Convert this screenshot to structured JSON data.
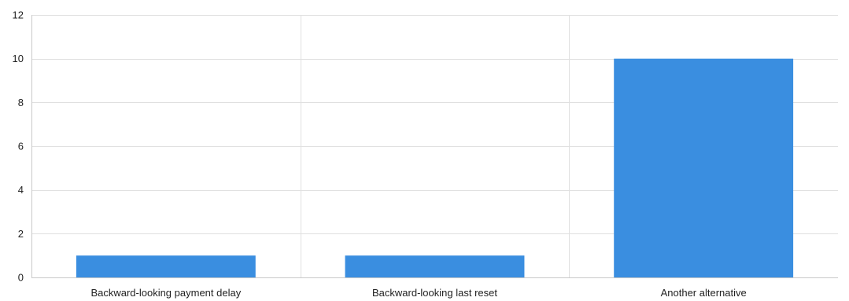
{
  "chart_data": {
    "type": "bar",
    "categories": [
      "Backward-looking payment delay",
      "Backward-looking last reset",
      "Another alternative"
    ],
    "values": [
      1,
      1,
      10
    ],
    "ylim": [
      0,
      12
    ],
    "yticks": [
      0,
      2,
      4,
      6,
      8,
      10,
      12
    ],
    "title": "",
    "xlabel": "",
    "ylabel": "",
    "grid": true,
    "colors": {
      "bar": "#3a8ee0",
      "grid": "#e0e0e0",
      "axis": "#c8c8c8"
    }
  }
}
